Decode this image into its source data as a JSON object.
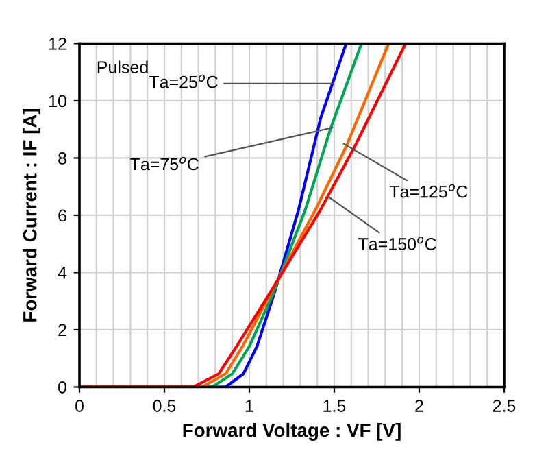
{
  "chart_data": {
    "type": "line",
    "xlabel": "Forward Voltage : VF [V]",
    "ylabel": "Forward Current : IF [A]",
    "xlim": [
      0,
      2.5
    ],
    "ylim": [
      0,
      12
    ],
    "xticks": [
      0,
      0.5,
      1,
      1.5,
      2,
      2.5
    ],
    "yticks": [
      0,
      2,
      4,
      6,
      8,
      10,
      12
    ],
    "grid": true,
    "legend": false,
    "marker": "none",
    "line_style": "solid",
    "series": [
      {
        "color": "#0000ff",
        "x": [
          0,
          0.86,
          0.965,
          1.045,
          1.15,
          1.29,
          1.42,
          1.57
        ],
        "values": [
          0,
          0,
          0.46,
          1.42,
          3.33,
          6.2,
          9.4,
          12
        ]
      },
      {
        "color": "#00a651",
        "x": [
          0,
          0.78,
          0.9,
          1.0,
          1.145,
          1.33,
          1.48,
          1.66
        ],
        "values": [
          0,
          0,
          0.46,
          1.42,
          3.33,
          6.2,
          9.06,
          12
        ]
      },
      {
        "color": "#ff6600",
        "x": [
          0,
          0.72,
          0.86,
          0.96,
          1.13,
          1.39,
          1.57,
          1.82
        ],
        "values": [
          0,
          0,
          0.46,
          1.42,
          3.33,
          6.2,
          8.4,
          12
        ]
      },
      {
        "color": "#ff0000",
        "x": [
          0,
          0.67,
          0.82,
          0.925,
          1.126,
          1.42,
          1.62,
          1.92
        ],
        "values": [
          0,
          0,
          0.46,
          1.42,
          3.33,
          6.2,
          8.4,
          12
        ]
      }
    ],
    "annotations": [
      "Pulsed",
      {
        "text": "Ta=25$^{o}$C",
        "x": 1.49,
        "y": 10.6
      },
      {
        "text": "Ta=75$^{o}$C",
        "x": 1.49,
        "y": 9.06
      },
      {
        "text": "Ta=125$^{o}$C",
        "x": 1.555,
        "y": 8.5
      },
      {
        "text": "Ta=150$^{o}$C",
        "x": 1.46,
        "y": 6.67
      }
    ]
  }
}
